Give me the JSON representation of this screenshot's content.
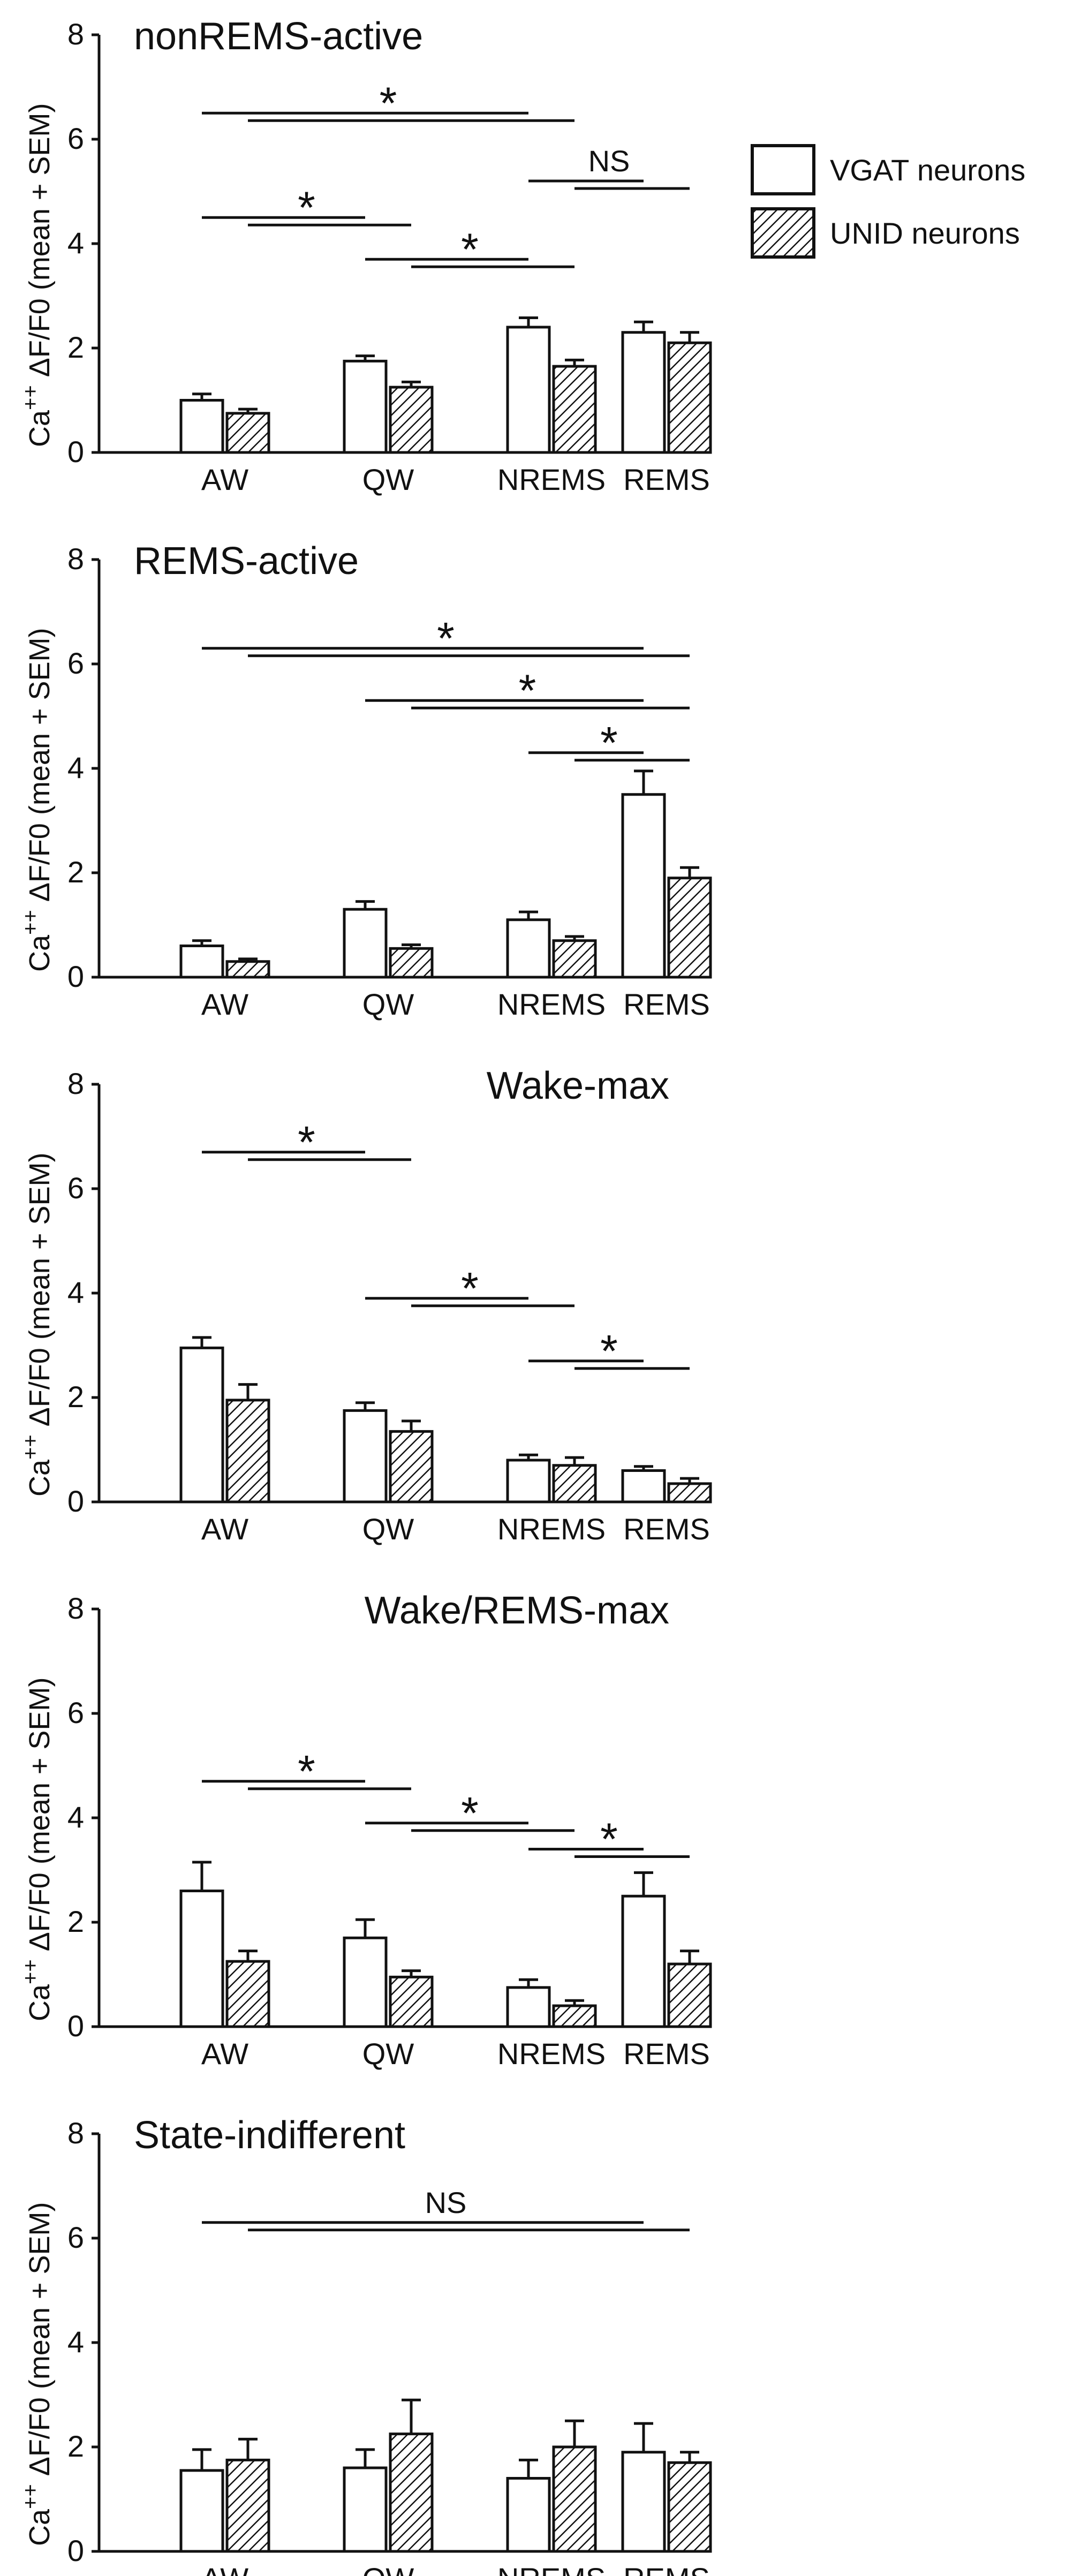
{
  "figure": {
    "y_axis_label_main": "Ca",
    "y_axis_label_superscript": "++",
    "y_axis_label_rest": " ΔF/F0 (mean + SEM)",
    "legend": [
      {
        "label": "VGAT neurons",
        "pattern": "open"
      },
      {
        "label": "UNID neurons",
        "pattern": "hatched"
      }
    ],
    "colors": {
      "ink": "#111111",
      "background": "#ffffff",
      "bar_fill_open": "#ffffff"
    }
  },
  "chart_data": [
    {
      "type": "bar",
      "title": "nonREMS-active",
      "categories": [
        "AW",
        "QW",
        "NREMS",
        "REMS"
      ],
      "series": [
        {
          "name": "VGAT neurons",
          "values": [
            1.0,
            1.75,
            2.4,
            2.3
          ],
          "sem": [
            0.12,
            0.1,
            0.18,
            0.2
          ]
        },
        {
          "name": "UNID neurons",
          "values": [
            0.75,
            1.25,
            1.65,
            2.1
          ],
          "sem": [
            0.08,
            0.1,
            0.12,
            0.2
          ]
        }
      ],
      "ylim": [
        0,
        8
      ],
      "yticks": [
        0,
        2,
        4,
        6,
        8
      ],
      "ylabel": "Ca++ ΔF/F0 (mean + SEM)",
      "xlabel": "",
      "comparisons": [
        {
          "label": "*",
          "from": "AW",
          "to": "NREMS",
          "y": 6.5
        },
        {
          "label": "NS",
          "from": "NREMS",
          "to": "REMS",
          "y": 5.2
        },
        {
          "label": "*",
          "from": "AW",
          "to": "QW",
          "y": 4.5
        },
        {
          "label": "*",
          "from": "QW",
          "to": "NREMS",
          "y": 3.7
        }
      ]
    },
    {
      "type": "bar",
      "title": "REMS-active",
      "categories": [
        "AW",
        "QW",
        "NREMS",
        "REMS"
      ],
      "series": [
        {
          "name": "VGAT neurons",
          "values": [
            0.6,
            1.3,
            1.1,
            3.5
          ],
          "sem": [
            0.1,
            0.15,
            0.15,
            0.45
          ]
        },
        {
          "name": "UNID neurons",
          "values": [
            0.3,
            0.55,
            0.7,
            1.9
          ],
          "sem": [
            0.05,
            0.07,
            0.08,
            0.2
          ]
        }
      ],
      "ylim": [
        0,
        8
      ],
      "yticks": [
        0,
        2,
        4,
        6,
        8
      ],
      "ylabel": "Ca++ ΔF/F0 (mean + SEM)",
      "xlabel": "",
      "comparisons": [
        {
          "label": "*",
          "from": "AW",
          "to": "REMS",
          "y": 6.3
        },
        {
          "label": "*",
          "from": "QW",
          "to": "REMS",
          "y": 5.3
        },
        {
          "label": "*",
          "from": "NREMS",
          "to": "REMS",
          "y": 4.3
        }
      ]
    },
    {
      "type": "bar",
      "title": "Wake-max",
      "categories": [
        "AW",
        "QW",
        "NREMS",
        "REMS"
      ],
      "series": [
        {
          "name": "VGAT neurons",
          "values": [
            2.95,
            1.75,
            0.8,
            0.6
          ],
          "sem": [
            0.2,
            0.15,
            0.1,
            0.08
          ]
        },
        {
          "name": "UNID neurons",
          "values": [
            1.95,
            1.35,
            0.7,
            0.35
          ],
          "sem": [
            0.3,
            0.2,
            0.15,
            0.1
          ]
        }
      ],
      "ylim": [
        0,
        8
      ],
      "yticks": [
        0,
        2,
        4,
        6,
        8
      ],
      "ylabel": "Ca++ ΔF/F0 (mean + SEM)",
      "xlabel": "",
      "comparisons": [
        {
          "label": "*",
          "from": "AW",
          "to": "QW",
          "y": 6.7
        },
        {
          "label": "*",
          "from": "QW",
          "to": "NREMS",
          "y": 3.9
        },
        {
          "label": "*",
          "from": "NREMS",
          "to": "REMS",
          "y": 2.7
        }
      ]
    },
    {
      "type": "bar",
      "title": "Wake/REMS-max",
      "categories": [
        "AW",
        "QW",
        "NREMS",
        "REMS"
      ],
      "series": [
        {
          "name": "VGAT neurons",
          "values": [
            2.6,
            1.7,
            0.75,
            2.5
          ],
          "sem": [
            0.55,
            0.35,
            0.15,
            0.45
          ]
        },
        {
          "name": "UNID neurons",
          "values": [
            1.25,
            0.95,
            0.4,
            1.2
          ],
          "sem": [
            0.2,
            0.12,
            0.1,
            0.25
          ]
        }
      ],
      "ylim": [
        0,
        8
      ],
      "yticks": [
        0,
        2,
        4,
        6,
        8
      ],
      "ylabel": "Ca++ ΔF/F0 (mean + SEM)",
      "xlabel": "",
      "comparisons": [
        {
          "label": "*",
          "from": "AW",
          "to": "QW",
          "y": 4.7
        },
        {
          "label": "*",
          "from": "QW",
          "to": "NREMS",
          "y": 3.9
        },
        {
          "label": "*",
          "from": "NREMS",
          "to": "REMS",
          "y": 3.4
        }
      ]
    },
    {
      "type": "bar",
      "title": "State-indifferent",
      "categories": [
        "AW",
        "QW",
        "NREMS",
        "REMS"
      ],
      "series": [
        {
          "name": "VGAT neurons",
          "values": [
            1.55,
            1.6,
            1.4,
            1.9
          ],
          "sem": [
            0.4,
            0.35,
            0.35,
            0.55
          ]
        },
        {
          "name": "UNID neurons",
          "values": [
            1.75,
            2.25,
            2.0,
            1.7
          ],
          "sem": [
            0.4,
            0.65,
            0.5,
            0.2
          ]
        }
      ],
      "ylim": [
        0,
        8
      ],
      "yticks": [
        0,
        2,
        4,
        6,
        8
      ],
      "ylabel": "Ca++ ΔF/F0 (mean + SEM)",
      "xlabel": "",
      "comparisons": [
        {
          "label": "NS",
          "from": "AW",
          "to": "REMS",
          "y": 6.3
        }
      ]
    }
  ]
}
